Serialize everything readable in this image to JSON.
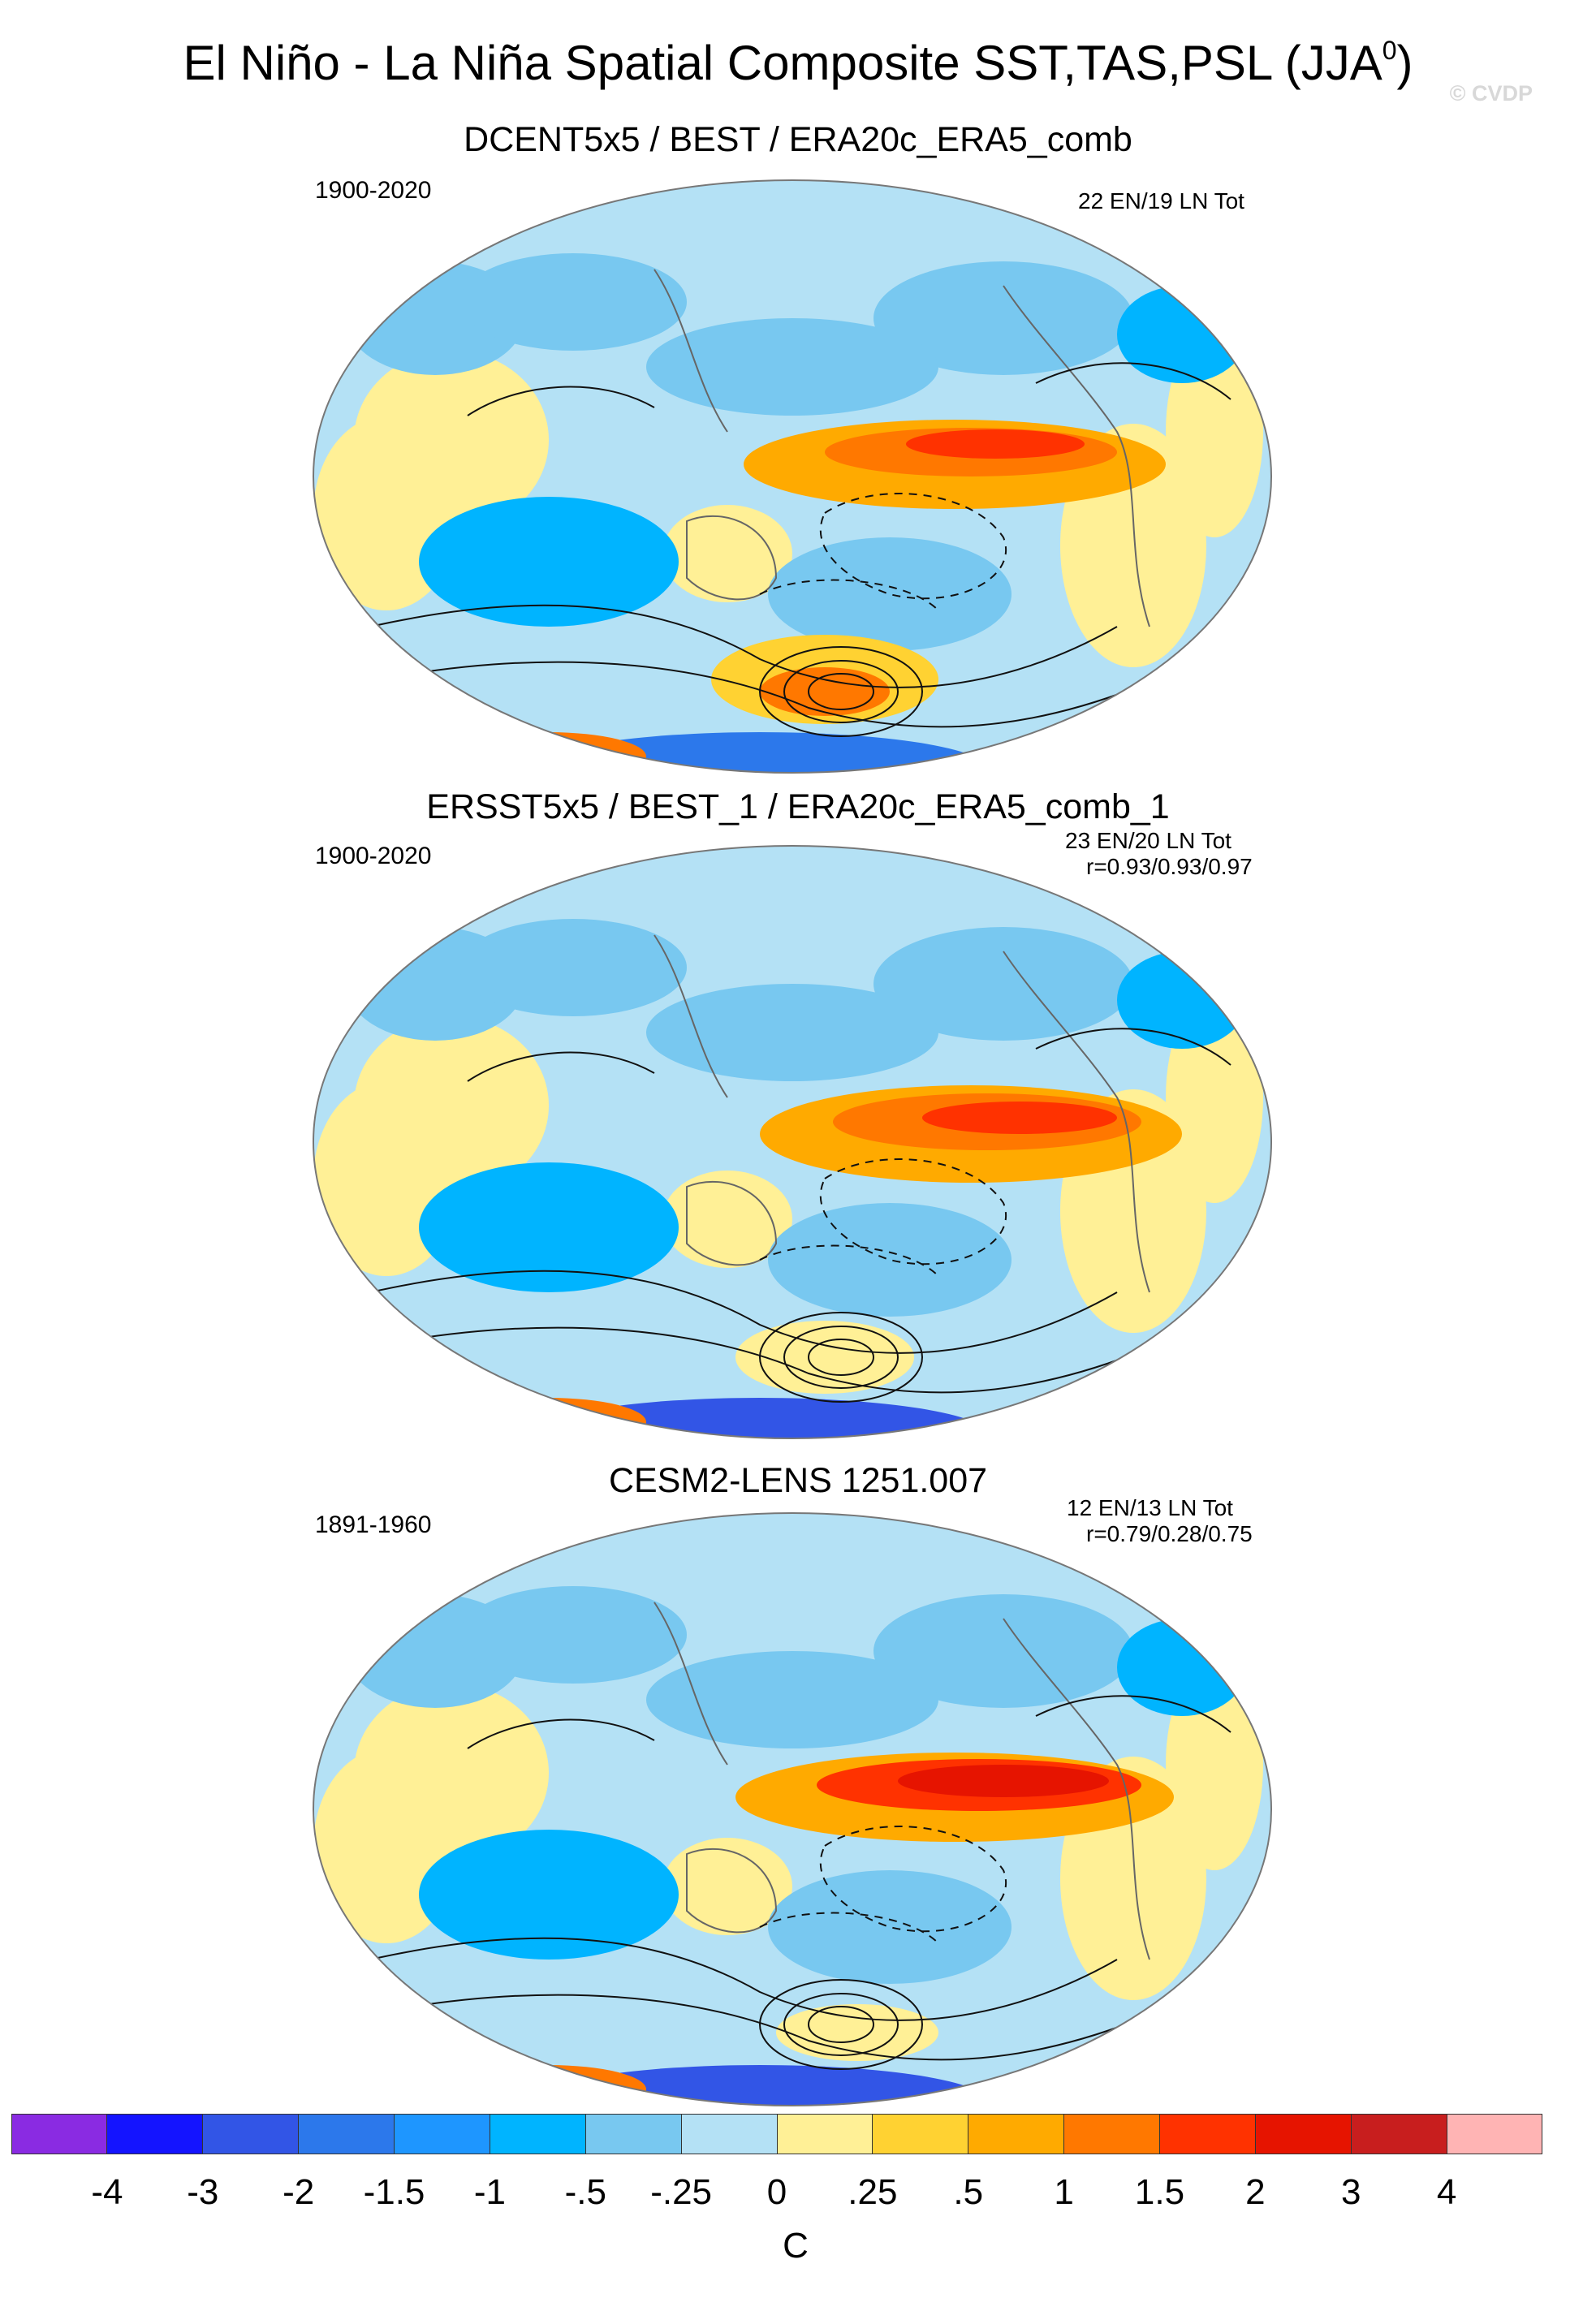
{
  "header": {
    "title_main": "El Niño - La Niña Spatial Composite SST,TAS,PSL (JJA",
    "title_sup": "0",
    "title_close": ")",
    "watermark": "© CVDP"
  },
  "panels": [
    {
      "title": "DCENT5x5 / BEST / ERA20c_ERA5_comb",
      "period": "1900-2020",
      "stats_line1": "22 EN/19 LN Tot",
      "stats_line2": ""
    },
    {
      "title": "ERSST5x5 / BEST_1 / ERA20c_ERA5_comb_1",
      "period": "1900-2020",
      "stats_line1": "23 EN/20 LN Tot",
      "stats_line2": "r=0.93/0.93/0.97"
    },
    {
      "title": "CESM2-LENS 1251.007",
      "period": "1891-1960",
      "stats_line1": "12 EN/13 LN Tot",
      "stats_line2": "r=0.79/0.28/0.75"
    }
  ],
  "colorbar": {
    "units": "C",
    "labels": [
      "-4",
      "-3",
      "-2",
      "-1.5",
      "-1",
      "-.5",
      "-.25",
      "0",
      ".25",
      ".5",
      "1",
      "1.5",
      "2",
      "3",
      "4"
    ],
    "colors": [
      "#8a2be2",
      "#1414ff",
      "#3255e6",
      "#2c78eb",
      "#1e96ff",
      "#00b4ff",
      "#78c8f0",
      "#b4e1f5",
      "#fff096",
      "#ffd232",
      "#ffaa00",
      "#ff7800",
      "#ff3200",
      "#e61400",
      "#c81e1e",
      "#ffb4b4"
    ]
  },
  "maps": {
    "ocean_color": "#b4e1f5",
    "land_color": "#fff096"
  }
}
